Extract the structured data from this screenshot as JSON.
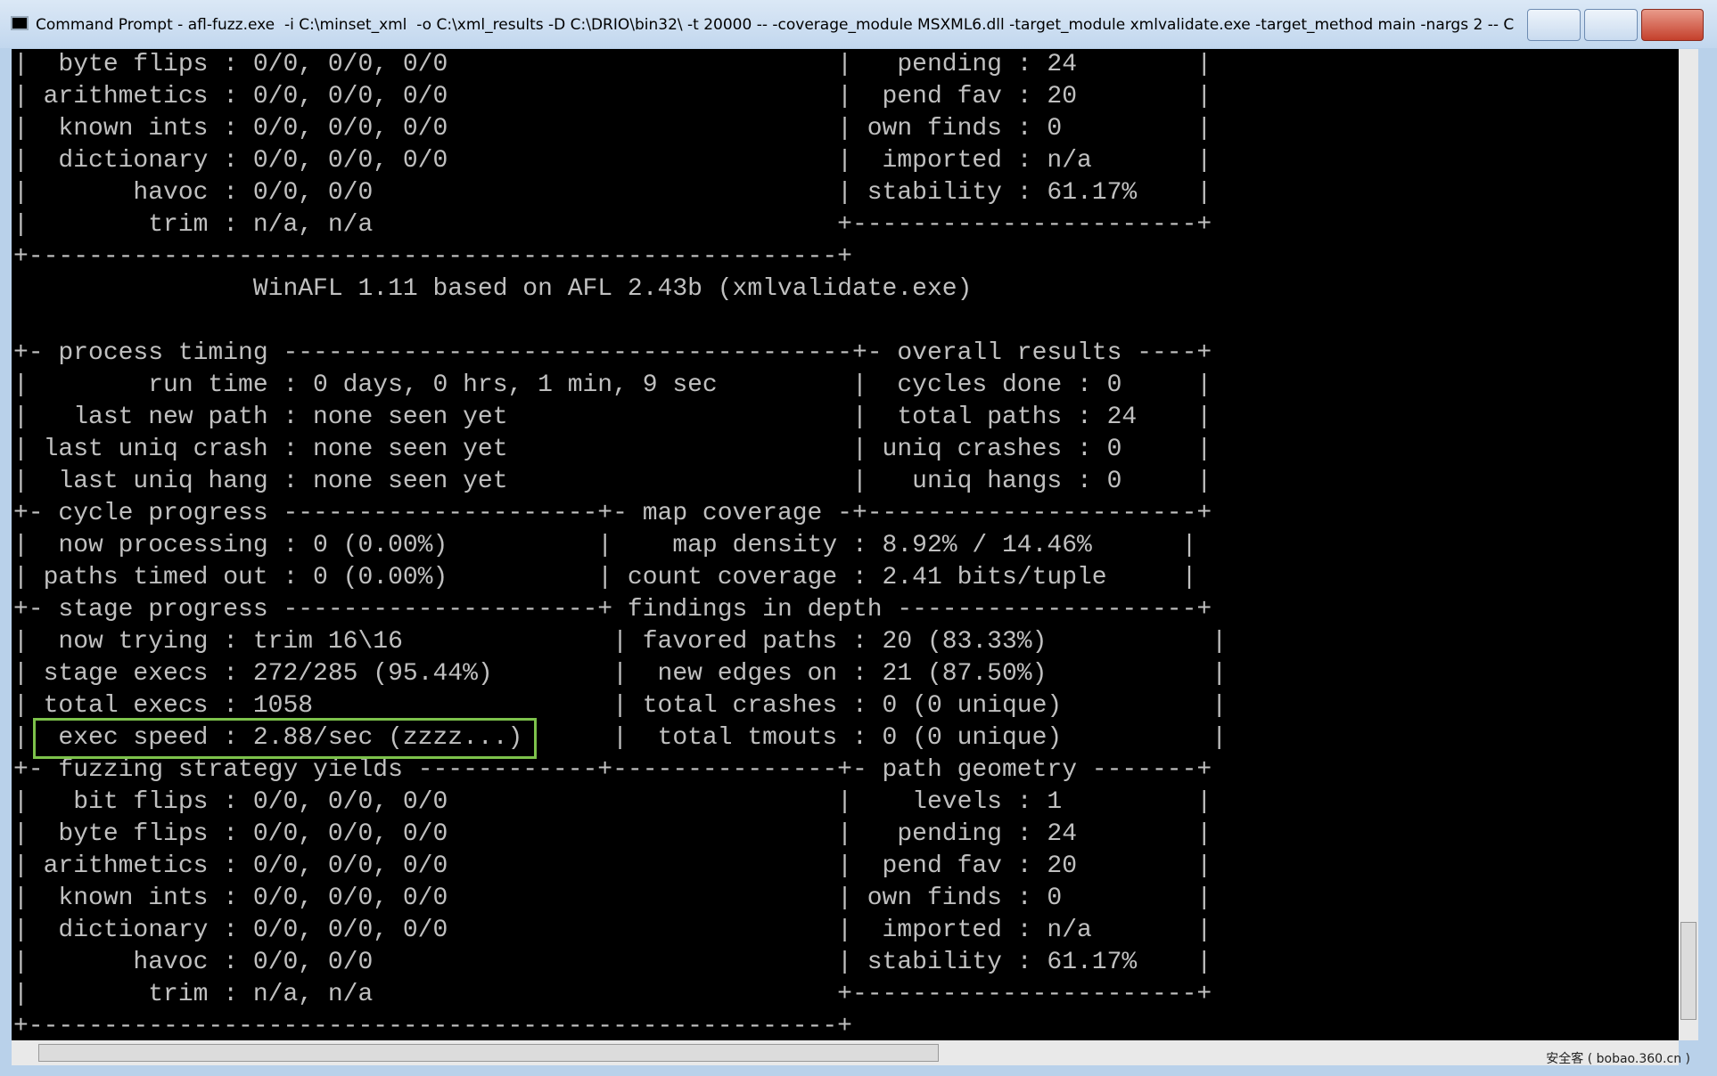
{
  "window": {
    "title": "Command Prompt - afl-fuzz.exe  -i C:\\minset_xml  -o C:\\xml_results -D C:\\DRIO\\bin32\\ -t 20000 -- -coverage_module MSXML6.dll -target_module xmlvalidate.exe -target_method main -nargs 2 -- C:\\xml_fuzz\\x..."
  },
  "terminal": {
    "lines": [
      "|  byte flips : 0/0, 0/0, 0/0                          |   pending : 24        |",
      "| arithmetics : 0/0, 0/0, 0/0                          |  pend fav : 20        |",
      "|  known ints : 0/0, 0/0, 0/0                          | own finds : 0         |",
      "|  dictionary : 0/0, 0/0, 0/0                          |  imported : n/a       |",
      "|       havoc : 0/0, 0/0                               | stability : 61.17%    |",
      "|        trim : n/a, n/a                               +-----------------------+",
      "+------------------------------------------------------+",
      "                WinAFL 1.11 based on AFL 2.43b (xmlvalidate.exe)",
      "",
      "+- process timing --------------------------------------+- overall results ----+",
      "|        run time : 0 days, 0 hrs, 1 min, 9 sec         |  cycles done : 0     |",
      "|   last new path : none seen yet                       |  total paths : 24    |",
      "| last uniq crash : none seen yet                       | uniq crashes : 0     |",
      "|  last uniq hang : none seen yet                       |   uniq hangs : 0     |",
      "+- cycle progress ---------------------+- map coverage -+----------------------+",
      "|  now processing : 0 (0.00%)          |    map density : 8.92% / 14.46%      |",
      "| paths timed out : 0 (0.00%)          | count coverage : 2.41 bits/tuple     |",
      "+- stage progress ---------------------+ findings in depth --------------------+",
      "|  now trying : trim 16\\16              | favored paths : 20 (83.33%)           |",
      "| stage execs : 272/285 (95.44%)        |  new edges on : 21 (87.50%)           |",
      "| total execs : 1058                    | total crashes : 0 (0 unique)          |",
      "|  exec speed : 2.88/sec (zzzz...)      |  total tmouts : 0 (0 unique)          |",
      "+- fuzzing strategy yields ------------+---------------+- path geometry -------+",
      "|   bit flips : 0/0, 0/0, 0/0                          |    levels : 1         |",
      "|  byte flips : 0/0, 0/0, 0/0                          |   pending : 24        |",
      "| arithmetics : 0/0, 0/0, 0/0                          |  pend fav : 20        |",
      "|  known ints : 0/0, 0/0, 0/0                          | own finds : 0         |",
      "|  dictionary : 0/0, 0/0, 0/0                          |  imported : n/a       |",
      "|       havoc : 0/0, 0/0                               | stability : 61.17%    |",
      "|        trim : n/a, n/a                               +-----------------------+",
      "+------------------------------------------------------+"
    ]
  },
  "watermark": "安全客 ( bobao.360.cn )"
}
